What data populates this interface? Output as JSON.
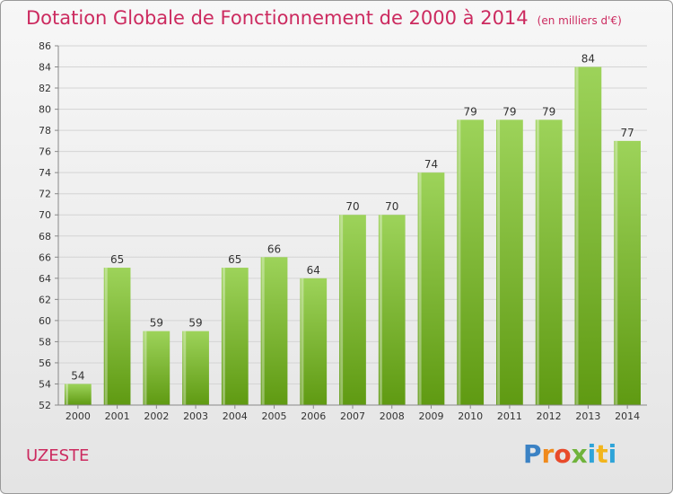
{
  "header": {
    "title": "Dotation Globale de Fonctionnement de 2000 à 2014",
    "subtitle": "(en milliers d'€)"
  },
  "footer": {
    "place": "UZESTE",
    "logo_text": "Proxiti"
  },
  "colors": {
    "title": "#cc2a5f",
    "bar_light": "#9dd35a",
    "bar_dark": "#5f9a12"
  },
  "chart_data": {
    "type": "bar",
    "title": "Dotation Globale de Fonctionnement de 2000 à 2014",
    "subtitle": "(en milliers d'€)",
    "categories": [
      "2000",
      "2001",
      "2002",
      "2003",
      "2004",
      "2005",
      "2006",
      "2007",
      "2008",
      "2009",
      "2010",
      "2011",
      "2012",
      "2013",
      "2014"
    ],
    "values": [
      54,
      65,
      59,
      59,
      65,
      66,
      64,
      70,
      70,
      74,
      79,
      79,
      79,
      84,
      77
    ],
    "data_labels": [
      "54",
      "65",
      "59",
      "59",
      "65",
      "66",
      "64",
      "70",
      "70",
      "74",
      "79",
      "79",
      "79",
      "84",
      "77"
    ],
    "xlabel": "",
    "ylabel": "",
    "ylim": [
      52,
      86
    ],
    "yticks": [
      52,
      54,
      56,
      58,
      60,
      62,
      64,
      66,
      68,
      70,
      72,
      74,
      76,
      78,
      80,
      82,
      84,
      86
    ],
    "grid": true,
    "legend": "none"
  }
}
